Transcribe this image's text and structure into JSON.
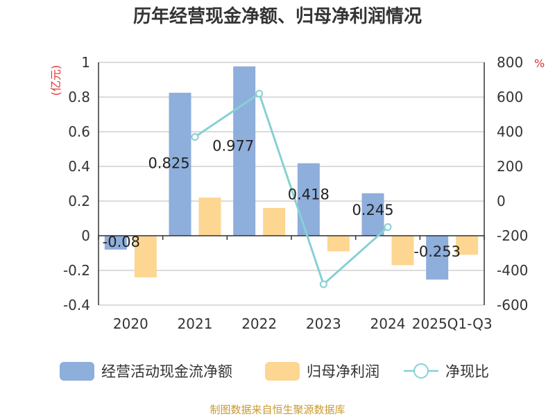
{
  "chart_data": {
    "type": "bar",
    "title": "历年经营现金净额、归母净利润情况",
    "categories": [
      "2020",
      "2021",
      "2022",
      "2023",
      "2024",
      "2025Q1-Q3"
    ],
    "left_axis": {
      "unit": "(亿元)",
      "ylim": [
        -0.4,
        1
      ],
      "ticks": [
        "-0.4",
        "-0.2",
        "0",
        "0.2",
        "0.4",
        "0.6",
        "0.8",
        "1"
      ]
    },
    "right_axis": {
      "unit": "%",
      "ylim": [
        -600,
        800
      ],
      "ticks": [
        "-600",
        "-400",
        "-200",
        "0",
        "200",
        "400",
        "600",
        "800"
      ]
    },
    "series": [
      {
        "name": "经营活动现金流净额",
        "kind": "bar",
        "axis": "left",
        "color": "#8eaedb",
        "values": [
          -0.08,
          0.825,
          0.977,
          0.418,
          0.245,
          -0.253
        ],
        "data_labels": [
          "-0.08",
          "0.825",
          "0.977",
          "0.418",
          "0.245",
          "-0.253"
        ]
      },
      {
        "name": "归母净利润",
        "kind": "bar",
        "axis": "left",
        "color": "#fdd692",
        "values": [
          -0.24,
          0.22,
          0.16,
          -0.09,
          -0.17,
          -0.11
        ]
      },
      {
        "name": "净现比",
        "kind": "line",
        "axis": "right",
        "color": "#86d0d6",
        "values": [
          null,
          370,
          620,
          -480,
          -150,
          null
        ]
      }
    ],
    "grid": true,
    "legend_position": "bottom"
  },
  "source_note": "制图数据来自恒生聚源数据库",
  "colors": {
    "left_unit": "#e03030",
    "right_unit": "#e03030",
    "source_note": "#c99a30",
    "grid": "#cfcfcf",
    "axis": "#333333"
  }
}
